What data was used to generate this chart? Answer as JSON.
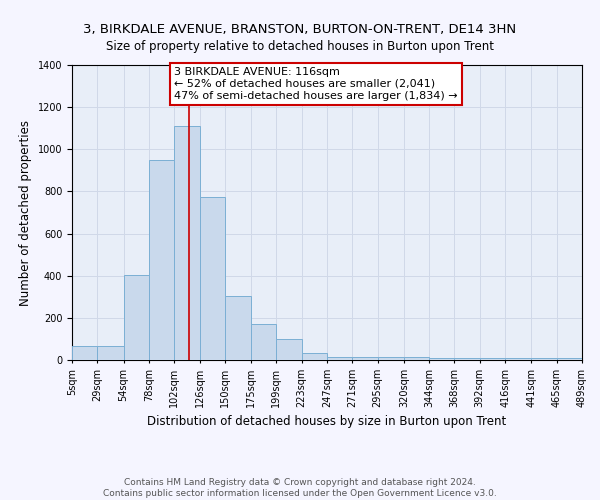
{
  "title1": "3, BIRKDALE AVENUE, BRANSTON, BURTON-ON-TRENT, DE14 3HN",
  "title2": "Size of property relative to detached houses in Burton upon Trent",
  "xlabel": "Distribution of detached houses by size in Burton upon Trent",
  "ylabel": "Number of detached properties",
  "bar_color": "#c9d9ec",
  "bar_edge_color": "#7bafd4",
  "bin_edges": [
    5,
    29,
    54,
    78,
    102,
    126,
    150,
    175,
    199,
    223,
    247,
    271,
    295,
    320,
    344,
    368,
    392,
    416,
    441,
    465,
    489
  ],
  "bar_heights": [
    65,
    65,
    405,
    950,
    1110,
    775,
    305,
    170,
    100,
    35,
    15,
    15,
    15,
    15,
    10,
    10,
    10,
    10,
    10,
    10
  ],
  "tick_labels": [
    "5sqm",
    "29sqm",
    "54sqm",
    "78sqm",
    "102sqm",
    "126sqm",
    "150sqm",
    "175sqm",
    "199sqm",
    "223sqm",
    "247sqm",
    "271sqm",
    "295sqm",
    "320sqm",
    "344sqm",
    "368sqm",
    "392sqm",
    "416sqm",
    "441sqm",
    "465sqm",
    "489sqm"
  ],
  "vline_x": 116,
  "vline_color": "#cc0000",
  "annotation_text": "3 BIRKDALE AVENUE: 116sqm\n← 52% of detached houses are smaller (2,041)\n47% of semi-detached houses are larger (1,834) →",
  "annotation_box_color": "#ffffff",
  "annotation_box_edge": "#cc0000",
  "ylim": [
    0,
    1400
  ],
  "yticks": [
    0,
    200,
    400,
    600,
    800,
    1000,
    1200,
    1400
  ],
  "xlim_min": 5,
  "xlim_max": 489,
  "grid_color": "#d0d8e8",
  "background_color": "#e8eef8",
  "fig_background_color": "#f5f5ff",
  "footer_text": "Contains HM Land Registry data © Crown copyright and database right 2024.\nContains public sector information licensed under the Open Government Licence v3.0.",
  "title1_fontsize": 9.5,
  "title2_fontsize": 8.5,
  "xlabel_fontsize": 8.5,
  "ylabel_fontsize": 8.5,
  "tick_fontsize": 7,
  "annotation_fontsize": 8,
  "footer_fontsize": 6.5
}
